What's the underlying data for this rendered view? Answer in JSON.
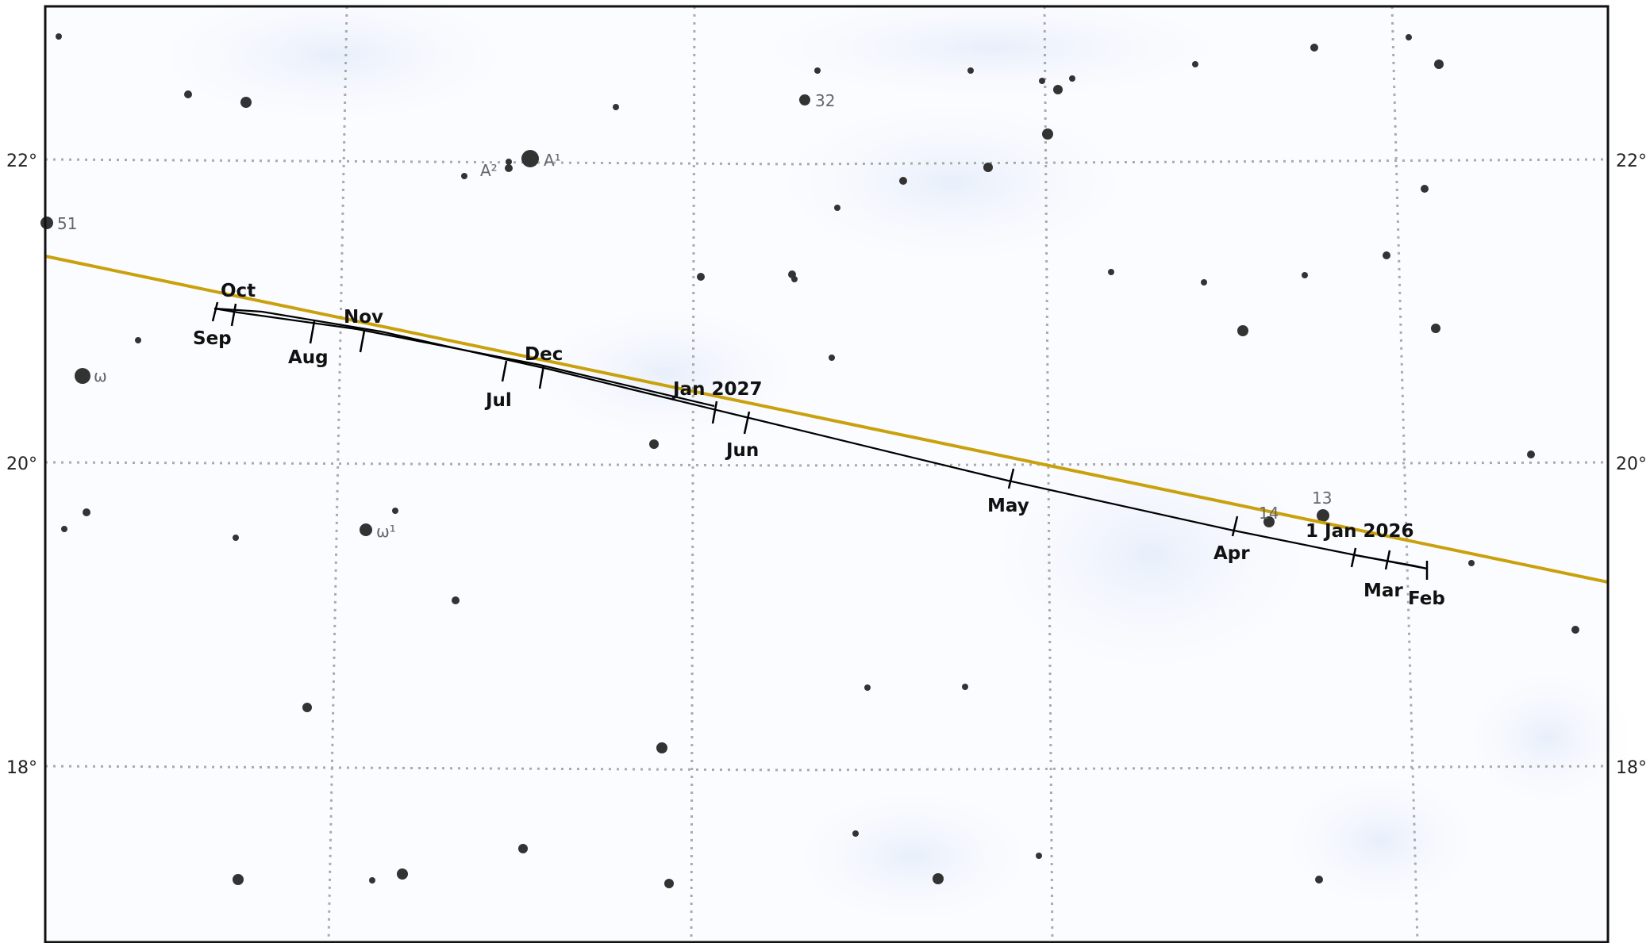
{
  "dec_labels": [
    "22°",
    "20°",
    "18°"
  ],
  "path_months": [
    "1 Jan 2026",
    "Feb",
    "Mar",
    "Apr",
    "May",
    "Jun",
    "Jul",
    "Aug",
    "Sep",
    "Oct",
    "Nov",
    "Dec",
    "Jan 2027"
  ],
  "star_labels": [
    "32",
    "A¹",
    "A²",
    "51",
    "ω",
    "ω¹",
    "14",
    "13"
  ],
  "colors": {
    "background": "#fbfcff",
    "grid": "#aaaaaa",
    "ecliptic": "#c9a10c",
    "path": "#000000",
    "star": "#333333"
  }
}
